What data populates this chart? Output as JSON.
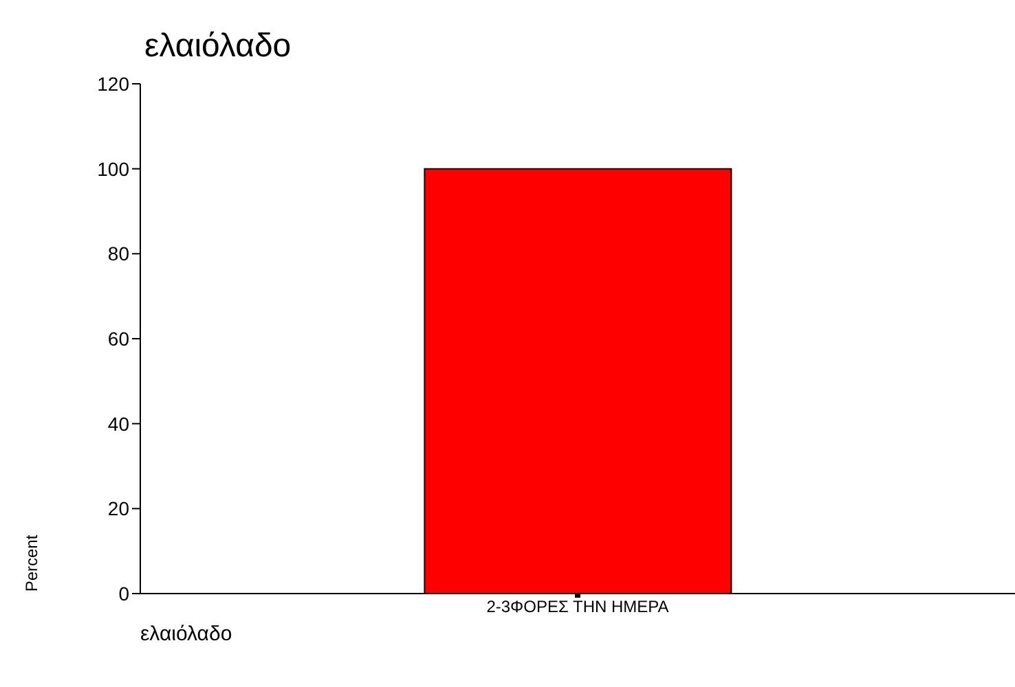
{
  "chart_data": {
    "type": "bar",
    "title": "ελαιόλαδο",
    "xlabel": "ελαιόλαδο",
    "ylabel": "Percent",
    "categories": [
      "2-3ΦΟΡΕΣ ΤΗΝ ΗΜΕΡΑ"
    ],
    "values": [
      100
    ],
    "color": "#ff0000",
    "ylim": [
      0,
      120
    ],
    "yticks": [
      0,
      20,
      40,
      60,
      80,
      100,
      120
    ],
    "grid": false,
    "legend": false
  }
}
